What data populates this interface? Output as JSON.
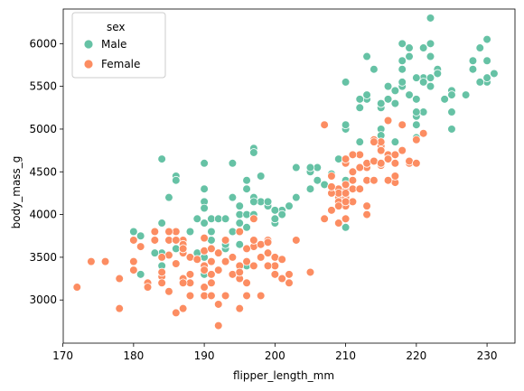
{
  "chart_data": {
    "type": "scatter",
    "title": "",
    "xlabel": "flipper_length_mm",
    "ylabel": "body_mass_g",
    "xlim": [
      170.05,
      233.95
    ],
    "ylim": [
      2495,
      6405
    ],
    "xticks": [
      170,
      180,
      190,
      200,
      210,
      220,
      230
    ],
    "yticks": [
      3000,
      3500,
      4000,
      4500,
      5000,
      5500,
      6000
    ],
    "grid": false,
    "legend": {
      "title": "sex",
      "placement": "top-left"
    },
    "series": [
      {
        "name": "Male",
        "color": "#66c2a5",
        "points": [
          [
            181,
            3750
          ],
          [
            195,
            3650
          ],
          [
            193,
            3650
          ],
          [
            190,
            4600
          ],
          [
            186,
            4450
          ],
          [
            180,
            3800
          ],
          [
            197,
            4775
          ],
          [
            194,
            4600
          ],
          [
            196,
            4400
          ],
          [
            191,
            3800
          ],
          [
            195,
            3900
          ],
          [
            198,
            4450
          ],
          [
            187,
            3600
          ],
          [
            191,
            3950
          ],
          [
            184,
            3400
          ],
          [
            186,
            3600
          ],
          [
            195,
            3800
          ],
          [
            189,
            3950
          ],
          [
            185,
            3800
          ],
          [
            192,
            3950
          ],
          [
            195,
            4000
          ],
          [
            194,
            4200
          ],
          [
            190,
            4300
          ],
          [
            190,
            3300
          ],
          [
            195,
            3900
          ],
          [
            184,
            4650
          ],
          [
            193,
            3950
          ],
          [
            200,
            3900
          ],
          [
            185,
            4200
          ],
          [
            190,
            4150
          ],
          [
            184,
            3900
          ],
          [
            196,
            3850
          ],
          [
            189,
            3550
          ],
          [
            198,
            4150
          ],
          [
            190,
            4075
          ],
          [
            190,
            3900
          ],
          [
            196,
            4000
          ],
          [
            193,
            3950
          ],
          [
            193,
            3600
          ],
          [
            191,
            3700
          ],
          [
            194,
            4200
          ],
          [
            186,
            4400
          ],
          [
            197,
            4200
          ],
          [
            184,
            3550
          ],
          [
            188,
            3800
          ],
          [
            196,
            3400
          ],
          [
            190,
            3500
          ],
          [
            181,
            3300
          ],
          [
            183,
            3550
          ],
          [
            199,
            4100
          ],
          [
            201,
            4050
          ],
          [
            205,
            4300
          ],
          [
            210,
            4400
          ],
          [
            212,
            5250
          ],
          [
            215,
            5000
          ],
          [
            213,
            5400
          ],
          [
            222,
            6300
          ],
          [
            221,
            5950
          ],
          [
            230,
            6050
          ],
          [
            219,
            5950
          ],
          [
            217,
            5450
          ],
          [
            224,
            5350
          ],
          [
            223,
            5700
          ],
          [
            231,
            5650
          ],
          [
            230,
            5800
          ],
          [
            222,
            5500
          ],
          [
            220,
            5150
          ],
          [
            225,
            5200
          ],
          [
            230,
            5550
          ],
          [
            218,
            5800
          ],
          [
            228,
            5700
          ],
          [
            220,
            5350
          ],
          [
            221,
            5600
          ],
          [
            222,
            5600
          ],
          [
            225,
            5450
          ],
          [
            228,
            5800
          ],
          [
            215,
            5250
          ],
          [
            220,
            5050
          ],
          [
            214,
            5700
          ],
          [
            220,
            5600
          ],
          [
            213,
            5350
          ],
          [
            220,
            4900
          ],
          [
            221,
            5550
          ],
          [
            219,
            5400
          ],
          [
            215,
            5300
          ],
          [
            218,
            5500
          ],
          [
            221,
            5200
          ],
          [
            229,
            5550
          ],
          [
            222,
            5850
          ],
          [
            216,
            5350
          ],
          [
            223,
            5650
          ],
          [
            219,
            5850
          ],
          [
            222,
            6000
          ],
          [
            230,
            5600
          ],
          [
            227,
            5400
          ],
          [
            230,
            5800
          ],
          [
            218,
            5700
          ],
          [
            229,
            5950
          ],
          [
            225,
            5000
          ],
          [
            217,
            5300
          ],
          [
            213,
            5400
          ],
          [
            216,
            5500
          ],
          [
            210,
            5000
          ],
          [
            215,
            5300
          ],
          [
            220,
            5200
          ],
          [
            228,
            5800
          ],
          [
            213,
            5850
          ],
          [
            217,
            4850
          ],
          [
            215,
            4925
          ],
          [
            216,
            4700
          ],
          [
            208,
            4475
          ],
          [
            212,
            5350
          ],
          [
            218,
            5550
          ],
          [
            210,
            5050
          ],
          [
            216,
            5100
          ],
          [
            218,
            6000
          ],
          [
            209,
            4650
          ],
          [
            212,
            4850
          ],
          [
            225,
            5400
          ],
          [
            210,
            5550
          ],
          [
            203,
            4550
          ],
          [
            207,
            4350
          ],
          [
            206,
            4550
          ],
          [
            197,
            4725
          ],
          [
            205,
            4500
          ],
          [
            205,
            4550
          ],
          [
            206,
            4400
          ],
          [
            200,
            3950
          ],
          [
            201,
            4050
          ],
          [
            197,
            4000
          ],
          [
            199,
            4150
          ],
          [
            202,
            4100
          ],
          [
            196,
            4300
          ],
          [
            197,
            4150
          ],
          [
            203,
            4200
          ],
          [
            195,
            4100
          ],
          [
            194,
            3800
          ],
          [
            193,
            3650
          ],
          [
            201,
            4000
          ],
          [
            210,
            3850
          ],
          [
            200,
            4050
          ]
        ]
      },
      {
        "name": "Female",
        "color": "#fc8d62",
        "points": [
          [
            186,
            3800
          ],
          [
            195,
            3250
          ],
          [
            193,
            3450
          ],
          [
            181,
            3625
          ],
          [
            182,
            3200
          ],
          [
            185,
            3700
          ],
          [
            174,
            3450
          ],
          [
            180,
            3700
          ],
          [
            187,
            3550
          ],
          [
            183,
            3700
          ],
          [
            187,
            3700
          ],
          [
            172,
            3150
          ],
          [
            178,
            2900
          ],
          [
            188,
            3300
          ],
          [
            187,
            3650
          ],
          [
            191,
            3300
          ],
          [
            190,
            3400
          ],
          [
            189,
            3475
          ],
          [
            185,
            3525
          ],
          [
            184,
            3500
          ],
          [
            178,
            3250
          ],
          [
            188,
            3050
          ],
          [
            195,
            3400
          ],
          [
            180,
            3450
          ],
          [
            186,
            2850
          ],
          [
            184,
            3275
          ],
          [
            184,
            3200
          ],
          [
            186,
            3425
          ],
          [
            187,
            3200
          ],
          [
            187,
            2900
          ],
          [
            180,
            3350
          ],
          [
            187,
            3600
          ],
          [
            190,
            3150
          ],
          [
            192,
            2700
          ],
          [
            190,
            3050
          ],
          [
            188,
            3500
          ],
          [
            190,
            3575
          ],
          [
            176,
            3450
          ],
          [
            191,
            3450
          ],
          [
            188,
            3200
          ],
          [
            183,
            3800
          ],
          [
            185,
            3100
          ],
          [
            182,
            3150
          ],
          [
            194,
            3300
          ],
          [
            196,
            3050
          ],
          [
            190,
            3400
          ],
          [
            197,
            3625
          ],
          [
            185,
            3800
          ],
          [
            184,
            3325
          ],
          [
            187,
            3250
          ],
          [
            189,
            3475
          ],
          [
            190,
            3350
          ],
          [
            191,
            3200
          ],
          [
            193,
            3450
          ],
          [
            186,
            3700
          ],
          [
            187,
            3250
          ],
          [
            200,
            3500
          ],
          [
            195,
            3325
          ],
          [
            198,
            3050
          ],
          [
            196,
            3200
          ],
          [
            200,
            3400
          ],
          [
            192,
            3550
          ],
          [
            193,
            3700
          ],
          [
            196,
            3450
          ],
          [
            190,
            3725
          ],
          [
            191,
            3600
          ],
          [
            199,
            3550
          ],
          [
            187,
            3600
          ],
          [
            198,
            3500
          ],
          [
            197,
            3400
          ],
          [
            199,
            3700
          ],
          [
            191,
            3050
          ],
          [
            195,
            2900
          ],
          [
            192,
            3350
          ],
          [
            210,
            4600
          ],
          [
            213,
            4400
          ],
          [
            210,
            4100
          ],
          [
            208,
            4450
          ],
          [
            209,
            4200
          ],
          [
            210,
            3950
          ],
          [
            209,
            4150
          ],
          [
            211,
            4400
          ],
          [
            214,
            4875
          ],
          [
            210,
            4600
          ],
          [
            213,
            4600
          ],
          [
            211,
            4500
          ],
          [
            213,
            4550
          ],
          [
            215,
            4750
          ],
          [
            210,
            4650
          ],
          [
            212,
            4300
          ],
          [
            216,
            4700
          ],
          [
            211,
            4150
          ],
          [
            210,
            4200
          ],
          [
            215,
            4800
          ],
          [
            209,
            4300
          ],
          [
            215,
            4575
          ],
          [
            214,
            4400
          ],
          [
            215,
            4750
          ],
          [
            212,
            4550
          ],
          [
            213,
            4600
          ],
          [
            210,
            4150
          ],
          [
            217,
            4375
          ],
          [
            209,
            3900
          ],
          [
            215,
            4600
          ],
          [
            216,
            4400
          ],
          [
            218,
            5050
          ],
          [
            212,
            4700
          ],
          [
            214,
            4625
          ],
          [
            215,
            4850
          ],
          [
            208,
            4050
          ],
          [
            207,
            3950
          ],
          [
            210,
            4275
          ],
          [
            209,
            4250
          ],
          [
            211,
            4300
          ],
          [
            214,
            4850
          ],
          [
            208,
            4250
          ],
          [
            216,
            5100
          ],
          [
            221,
            4950
          ],
          [
            218,
            4750
          ],
          [
            217,
            4700
          ],
          [
            220,
            4875
          ],
          [
            219,
            4600
          ],
          [
            216,
            4650
          ],
          [
            217,
            4450
          ],
          [
            214,
            4400
          ],
          [
            217,
            4600
          ],
          [
            215,
            4600
          ],
          [
            210,
            4250
          ],
          [
            212,
            4300
          ],
          [
            219,
            4625
          ],
          [
            207,
            5050
          ],
          [
            211,
            4700
          ],
          [
            213,
            4100
          ],
          [
            220,
            4600
          ],
          [
            216,
            4650
          ],
          [
            210,
            4350
          ],
          [
            208,
            4325
          ],
          [
            209,
            4100
          ],
          [
            213,
            4000
          ],
          [
            205,
            3325
          ],
          [
            201,
            3250
          ],
          [
            199,
            3400
          ],
          [
            202,
            3200
          ],
          [
            200,
            3300
          ],
          [
            196,
            3600
          ],
          [
            194,
            3500
          ],
          [
            203,
            3700
          ],
          [
            191,
            3300
          ],
          [
            194,
            3500
          ],
          [
            198,
            3650
          ],
          [
            197,
            3950
          ],
          [
            202,
            3300
          ],
          [
            193,
            3050
          ],
          [
            192,
            2950
          ],
          [
            195,
            3800
          ],
          [
            193,
            3450
          ],
          [
            197,
            3700
          ],
          [
            201,
            3475
          ],
          [
            199,
            3675
          ],
          [
            187,
            3200
          ]
        ]
      }
    ]
  }
}
